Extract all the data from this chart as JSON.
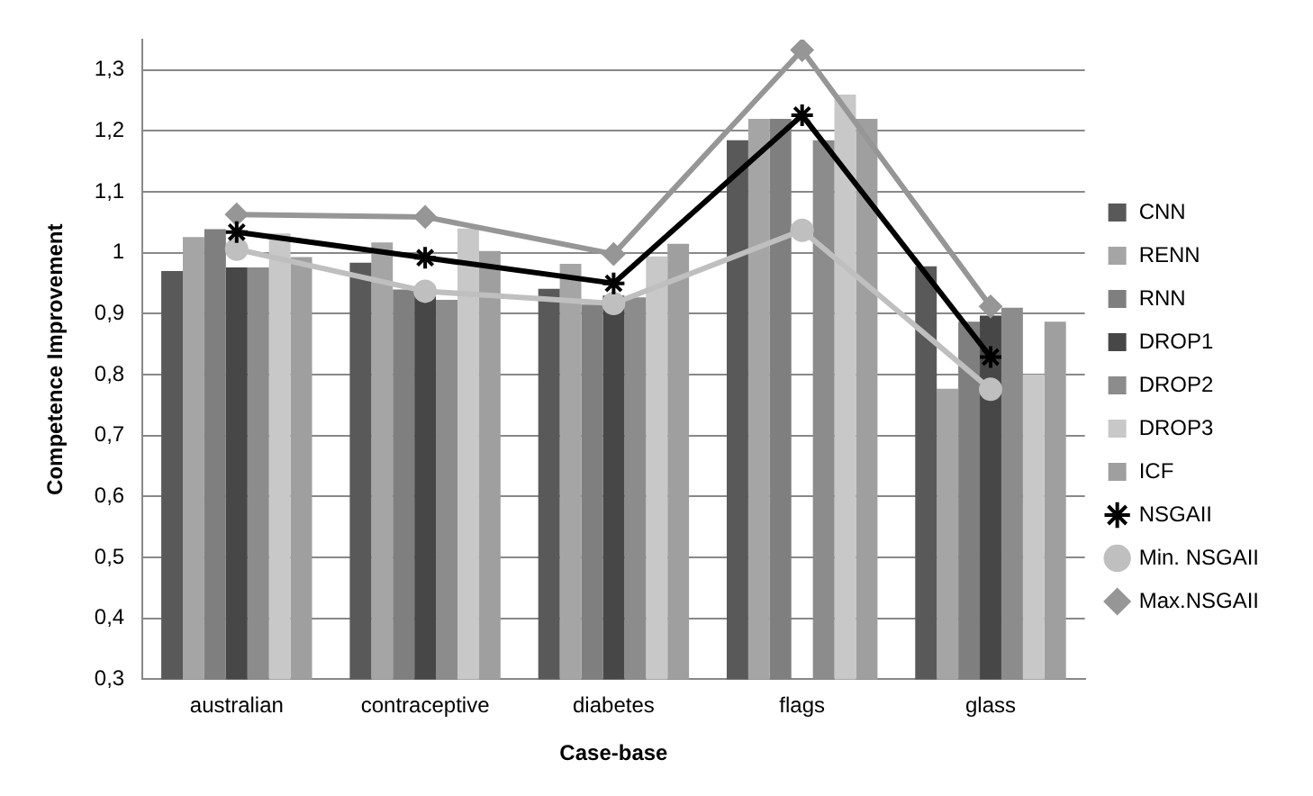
{
  "chart_data": {
    "type": "bar",
    "xlabel": "Case-base",
    "ylabel": "Competence Improvement",
    "categories": [
      "australian",
      "contraceptive",
      "diabetes",
      "flags",
      "glass"
    ],
    "ylim": [
      0.3,
      1.35
    ],
    "yticks": [
      {
        "value": 0.3,
        "label": "0,3"
      },
      {
        "value": 0.4,
        "label": "0,4"
      },
      {
        "value": 0.5,
        "label": "0,5"
      },
      {
        "value": 0.6,
        "label": "0,6"
      },
      {
        "value": 0.7,
        "label": "0,7"
      },
      {
        "value": 0.8,
        "label": "0,8"
      },
      {
        "value": 0.9,
        "label": "0,9"
      },
      {
        "value": 1,
        "label": "1"
      },
      {
        "value": 1.1,
        "label": "1,1"
      },
      {
        "value": 1.2,
        "label": "1,2"
      },
      {
        "value": 1.3,
        "label": "1,3"
      }
    ],
    "grid": "y",
    "legend": "right",
    "series": [
      {
        "name": "CNN",
        "color": "#595959",
        "values": [
          0.97,
          0.984,
          0.941,
          1.185,
          0.978
        ]
      },
      {
        "name": "RENN",
        "color": "#a5a5a5",
        "values": [
          1.026,
          1.017,
          0.982,
          1.22,
          0.777
        ]
      },
      {
        "name": "RNN",
        "color": "#7f7f7f",
        "values": [
          1.039,
          0.94,
          0.915,
          1.22,
          0.887
        ]
      },
      {
        "name": "DROP1",
        "color": "#474747",
        "values": [
          0.976,
          0.93,
          0.93,
          null,
          0.897
        ]
      },
      {
        "name": "DROP2",
        "color": "#8c8c8c",
        "values": [
          0.976,
          0.923,
          0.927,
          1.185,
          0.91
        ]
      },
      {
        "name": "DROP3",
        "color": "#c8c8c8",
        "values": [
          1.032,
          1.04,
          0.994,
          1.26,
          0.8
        ]
      },
      {
        "name": "ICF",
        "color": "#9f9f9f",
        "values": [
          0.993,
          1.003,
          1.015,
          1.22,
          0.887
        ]
      },
      {
        "name": "NSGAII",
        "type": "line",
        "marker": "cross",
        "color": "#000000",
        "values": [
          1.034,
          0.992,
          0.95,
          1.226,
          0.829
        ]
      },
      {
        "name": "Min. NSGAII",
        "type": "line",
        "marker": "circle",
        "color": "#bfbfbf",
        "values": [
          1.006,
          0.937,
          0.917,
          1.037,
          0.776
        ]
      },
      {
        "name": "Max.NSGAII",
        "type": "line",
        "marker": "diamond",
        "color": "#969696",
        "values": [
          1.063,
          1.059,
          0.998,
          1.333,
          0.912
        ]
      }
    ]
  }
}
